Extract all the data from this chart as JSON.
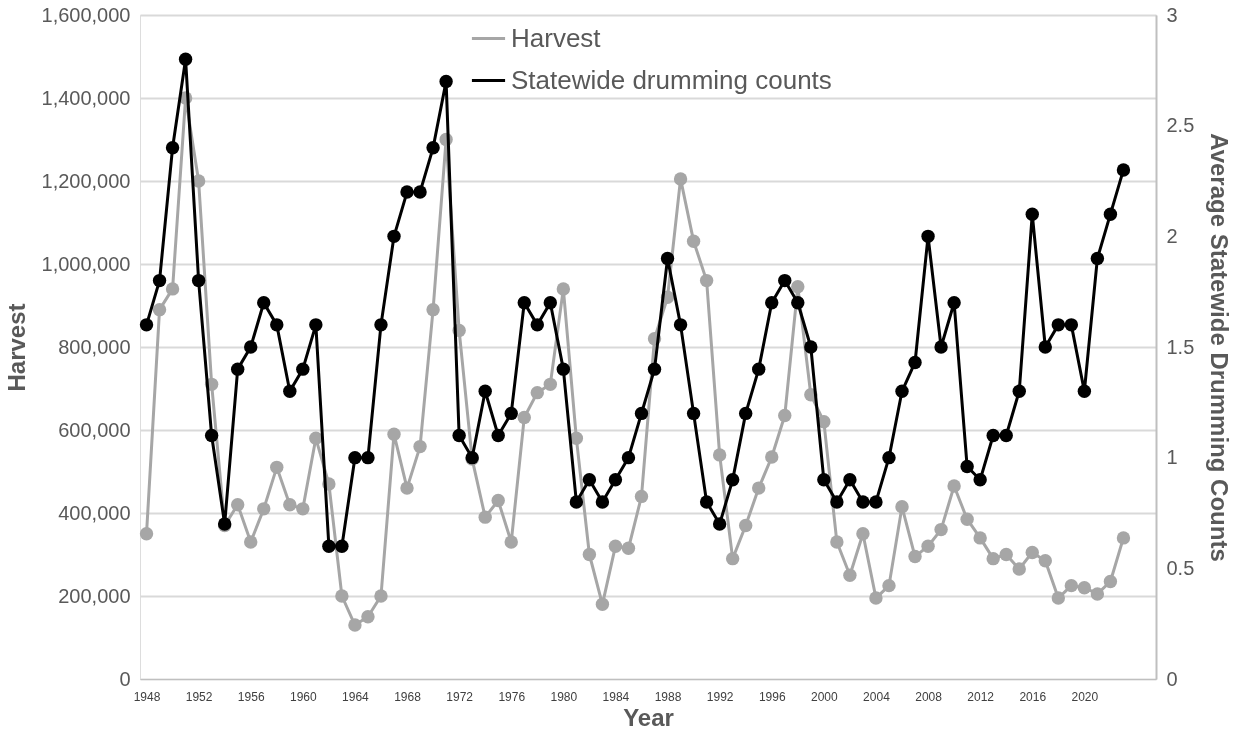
{
  "chart_data": {
    "type": "line",
    "xlabel": "Year",
    "ylabel": "Harvest",
    "y2label": "Average Statewide Drumming Counts",
    "x": [
      1948,
      1949,
      1950,
      1951,
      1952,
      1953,
      1954,
      1955,
      1956,
      1957,
      1958,
      1959,
      1960,
      1961,
      1962,
      1963,
      1964,
      1965,
      1966,
      1967,
      1968,
      1969,
      1970,
      1971,
      1972,
      1973,
      1974,
      1975,
      1976,
      1977,
      1978,
      1979,
      1980,
      1981,
      1982,
      1983,
      1984,
      1985,
      1986,
      1987,
      1988,
      1989,
      1990,
      1991,
      1992,
      1993,
      1994,
      1995,
      1996,
      1997,
      1998,
      1999,
      2000,
      2001,
      2002,
      2003,
      2004,
      2005,
      2006,
      2007,
      2008,
      2009,
      2010,
      2011,
      2012,
      2013,
      2014,
      2015,
      2016,
      2017,
      2018,
      2019,
      2020,
      2021,
      2022,
      2023
    ],
    "series": [
      {
        "name": "Harvest",
        "color": "#a6a6a6",
        "values": [
          350000,
          890000,
          940000,
          1400000,
          1200000,
          710000,
          370000,
          420000,
          330000,
          410000,
          510000,
          420000,
          410000,
          580000,
          470000,
          200000,
          130000,
          150000,
          200000,
          590000,
          460000,
          560000,
          890000,
          1300000,
          840000,
          530000,
          390000,
          430000,
          330000,
          630000,
          690000,
          710000,
          940000,
          580000,
          300000,
          180000,
          320000,
          315000,
          440000,
          820000,
          920000,
          1205000,
          1055000,
          960000,
          540000,
          290000,
          370000,
          460000,
          535000,
          635000,
          945000,
          685000,
          620000,
          330000,
          250000,
          350000,
          195000,
          225000,
          415000,
          295000,
          320000,
          360000,
          465000,
          385000,
          340000,
          290000,
          300000,
          265000,
          305000,
          285000,
          195000,
          225000,
          220000,
          205000,
          235000,
          340000
        ]
      },
      {
        "name": "Statewide drumming counts",
        "color": "#000000",
        "axis": "y2",
        "values": [
          1.6,
          1.8,
          2.4,
          2.8,
          1.8,
          1.1,
          0.7,
          1.4,
          1.5,
          1.7,
          1.6,
          1.3,
          1.4,
          1.6,
          0.6,
          0.6,
          1.0,
          1.0,
          1.6,
          2.0,
          2.2,
          2.2,
          2.4,
          2.7,
          1.1,
          1.0,
          1.3,
          1.1,
          1.2,
          1.7,
          1.6,
          1.7,
          1.4,
          0.8,
          0.9,
          0.8,
          0.9,
          1.0,
          1.2,
          1.4,
          1.9,
          1.6,
          1.2,
          0.8,
          0.7,
          0.9,
          1.2,
          1.4,
          1.7,
          1.8,
          1.7,
          1.5,
          0.9,
          0.8,
          0.9,
          0.8,
          0.8,
          1.0,
          1.3,
          1.43,
          2.0,
          1.5,
          1.7,
          0.96,
          0.9,
          1.1,
          1.1,
          1.3,
          2.1,
          1.5,
          1.6,
          1.6,
          1.3,
          1.9,
          2.1,
          2.3
        ]
      }
    ],
    "xlim": [
      1947.5,
      2025.5
    ],
    "xticks": [
      1948,
      1952,
      1956,
      1960,
      1964,
      1968,
      1972,
      1976,
      1980,
      1984,
      1988,
      1992,
      1996,
      2000,
      2004,
      2008,
      2012,
      2016,
      2020
    ],
    "ylim": [
      0,
      1600000
    ],
    "yticks": [
      0,
      {
        "value": 200000,
        "label": "200,000"
      },
      {
        "value": 400000,
        "label": "400,000"
      },
      {
        "value": 600000,
        "label": "600,000"
      },
      {
        "value": 800000,
        "label": "800,000"
      },
      {
        "value": 1000000,
        "label": "1,000,000"
      },
      {
        "value": 1200000,
        "label": "1,200,000"
      },
      {
        "value": 1400000,
        "label": "1,400,000"
      },
      {
        "value": 1600000,
        "label": "1,600,000"
      }
    ],
    "y2lim": [
      0,
      3
    ],
    "y2ticks": [
      0,
      0.5,
      1,
      1.5,
      2,
      2.5,
      3
    ],
    "grid": "y",
    "legend": "top",
    "marker": "circle",
    "line_style": "solid"
  }
}
